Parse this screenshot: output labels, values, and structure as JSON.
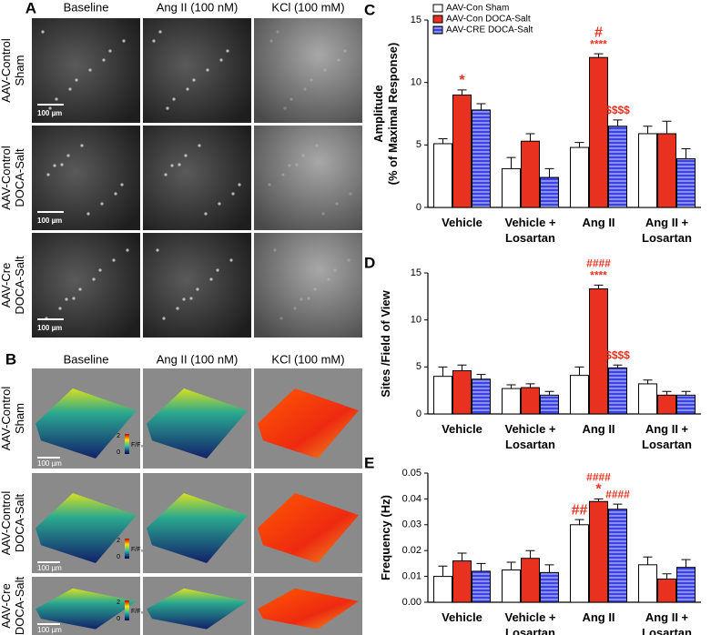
{
  "panel_a": {
    "label": "A",
    "columns": [
      "Baseline",
      "Ang II (100 nM)",
      "KCl (100 mM)"
    ],
    "rows": [
      [
        "AAV-Control",
        "Sham"
      ],
      [
        "AAV-Control",
        "DOCA-Salt"
      ],
      [
        "AAV-Cre",
        "DOCA-Salt"
      ]
    ],
    "scale_bars": [
      "100 µm",
      "100 µm",
      "100 µm"
    ]
  },
  "panel_b": {
    "label": "B",
    "columns": [
      "Baseline",
      "Ang II (100 nM)",
      "KCl (100 mM)"
    ],
    "rows": [
      [
        "AAV-Control",
        "Sham"
      ],
      [
        "AAV-Control",
        "DOCA-Salt"
      ],
      [
        "AAV-Cre",
        "DOCA-Salt"
      ]
    ],
    "scale_bars": [
      "100 µm",
      "100 µm",
      "100 µm"
    ],
    "colorbars": [
      {
        "ticks": [
          "2",
          "0"
        ],
        "label": "F/F₀"
      },
      {
        "ticks": [
          "2",
          "0"
        ],
        "label": "F/F₀"
      },
      {
        "ticks": [
          "2",
          "0"
        ],
        "label": "F/F₀"
      }
    ]
  },
  "chart_data": [
    {
      "type": "bar",
      "label": "C",
      "ylabel": [
        "Amplitude",
        "(% of Maximal Response)"
      ],
      "categories": [
        "Vehicle",
        "Vehicle + Losartan",
        "Ang II",
        "Ang II + Losartan"
      ],
      "ylim": [
        0,
        15
      ],
      "yticks": [
        0,
        5,
        10,
        15
      ],
      "legend": "top-left",
      "annotation_color": "#e8321f",
      "series": [
        {
          "name": "AAV-Con Sham",
          "color": "#ffffff",
          "pattern": "solid",
          "values": [
            5.1,
            3.1,
            4.8,
            5.9
          ],
          "errors": [
            0.4,
            0.9,
            0.4,
            0.6
          ],
          "annotations": [
            [],
            [],
            [],
            []
          ]
        },
        {
          "name": "AAV-Con DOCA-Salt",
          "color": "#e8321f",
          "pattern": "solid",
          "values": [
            9.0,
            5.3,
            12.0,
            5.9
          ],
          "errors": [
            0.4,
            0.6,
            0.3,
            1.0
          ],
          "annotations": [
            [
              "*"
            ],
            [],
            [
              "#",
              "****"
            ],
            []
          ]
        },
        {
          "name": "AAV-CRE DOCA-Salt",
          "color": "#3b44e0",
          "pattern": "stripes",
          "values": [
            7.8,
            2.4,
            6.5,
            3.9
          ],
          "errors": [
            0.5,
            0.7,
            0.5,
            0.8
          ],
          "annotations": [
            [],
            [],
            [
              "$$$$"
            ],
            []
          ]
        }
      ]
    },
    {
      "type": "bar",
      "label": "D",
      "ylabel": [
        "Sites /Field of View"
      ],
      "categories": [
        "Vehicle",
        "Vehicle + Losartan",
        "Ang II",
        "Ang II + Losartan"
      ],
      "ylim": [
        0,
        15
      ],
      "yticks": [
        0,
        5,
        10,
        15
      ],
      "annotation_color": "#e8321f",
      "series": [
        {
          "color": "#ffffff",
          "pattern": "solid",
          "values": [
            4.0,
            2.7,
            4.1,
            3.2
          ],
          "errors": [
            1.0,
            0.4,
            0.9,
            0.4
          ],
          "annotations": [
            [],
            [],
            [],
            []
          ]
        },
        {
          "color": "#e8321f",
          "pattern": "solid",
          "values": [
            4.6,
            2.8,
            13.3,
            2.0
          ],
          "errors": [
            0.6,
            0.4,
            0.4,
            0.4
          ],
          "annotations": [
            [],
            [],
            [
              "####",
              "****"
            ],
            []
          ]
        },
        {
          "color": "#3b44e0",
          "pattern": "stripes",
          "values": [
            3.7,
            2.0,
            4.9,
            2.0
          ],
          "errors": [
            0.5,
            0.4,
            0.3,
            0.4
          ],
          "annotations": [
            [],
            [],
            [
              "$$$$"
            ],
            []
          ]
        }
      ]
    },
    {
      "type": "bar",
      "label": "E",
      "ylabel": [
        "Frequency (Hz)"
      ],
      "categories": [
        "Vehicle",
        "Vehicle + Losartan",
        "Ang II",
        "Ang II + Losartan"
      ],
      "ylim": [
        0,
        0.05
      ],
      "yticks": [
        {
          "value": 0,
          "label": "0.00"
        },
        0.01,
        0.02,
        0.03,
        0.04,
        0.05
      ],
      "annotation_color": "#e8321f",
      "series": [
        {
          "color": "#ffffff",
          "pattern": "solid",
          "values": [
            0.01,
            0.0125,
            0.03,
            0.0145
          ],
          "errors": [
            0.004,
            0.003,
            0.002,
            0.003
          ],
          "annotations": [
            [],
            [],
            [
              "##"
            ],
            []
          ]
        },
        {
          "color": "#e8321f",
          "pattern": "solid",
          "values": [
            0.016,
            0.017,
            0.039,
            0.009
          ],
          "errors": [
            0.003,
            0.003,
            0.001,
            0.002
          ],
          "annotations": [
            [],
            [],
            [
              "####",
              "*"
            ],
            []
          ]
        },
        {
          "color": "#3b44e0",
          "pattern": "stripes",
          "values": [
            0.012,
            0.0115,
            0.036,
            0.0135
          ],
          "errors": [
            0.003,
            0.003,
            0.002,
            0.003
          ],
          "annotations": [
            [],
            [],
            [
              "####"
            ],
            []
          ]
        }
      ]
    }
  ]
}
